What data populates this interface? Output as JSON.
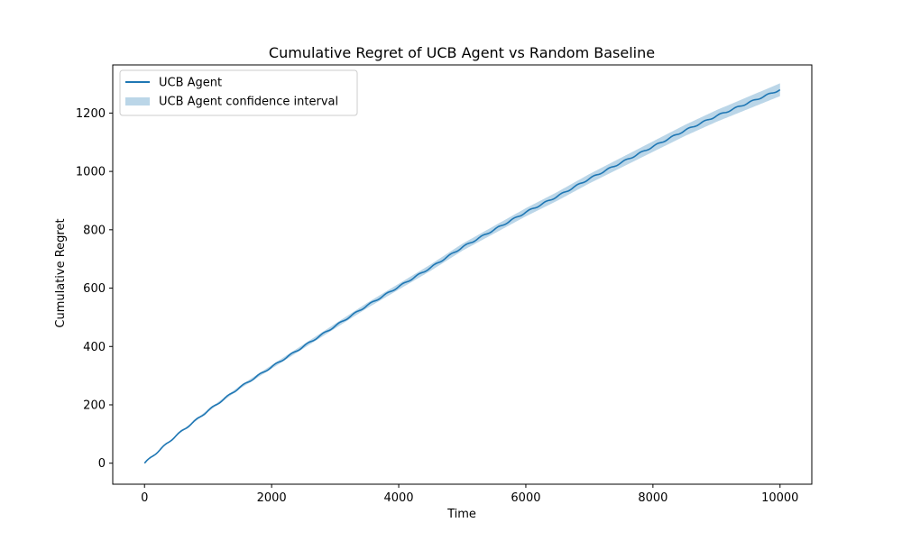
{
  "chart_data": {
    "type": "line",
    "title": "Cumulative Regret of UCB Agent vs Random Baseline",
    "xlabel": "Time",
    "ylabel": "Cumulative Regret",
    "xlim": [
      -500,
      10500
    ],
    "ylim": [
      -72,
      1365
    ],
    "xticks": [
      0,
      2000,
      4000,
      6000,
      8000,
      10000
    ],
    "yticks": [
      0,
      200,
      400,
      600,
      800,
      1000,
      1200
    ],
    "grid": false,
    "legend_position": "top-left",
    "legend": [
      {
        "label": "UCB Agent",
        "kind": "line",
        "color": "#1f77b4"
      },
      {
        "label": "UCB Agent confidence interval",
        "kind": "patch",
        "color": "#1f77b4",
        "alpha": 0.3
      }
    ],
    "series": [
      {
        "name": "UCB Agent",
        "color": "#1f77b4",
        "x": [
          0,
          500,
          1000,
          1500,
          2000,
          2500,
          3000,
          3500,
          4000,
          4500,
          5000,
          5500,
          6000,
          6500,
          7000,
          7500,
          8000,
          8500,
          9000,
          9500,
          10000
        ],
        "y": [
          0,
          95,
          180,
          260,
          330,
          400,
          470,
          540,
          605,
          670,
          740,
          800,
          860,
          915,
          975,
          1030,
          1085,
          1140,
          1190,
          1235,
          1280
        ],
        "ci_lower": [
          0,
          93,
          176,
          255,
          324,
          393,
          462,
          531,
          595,
          659,
          728,
          787,
          846,
          900,
          959,
          1013,
          1067,
          1121,
          1170,
          1214,
          1258
        ],
        "ci_upper": [
          0,
          97,
          184,
          265,
          336,
          407,
          478,
          549,
          615,
          681,
          752,
          813,
          874,
          930,
          991,
          1047,
          1103,
          1159,
          1210,
          1256,
          1302
        ]
      }
    ]
  }
}
